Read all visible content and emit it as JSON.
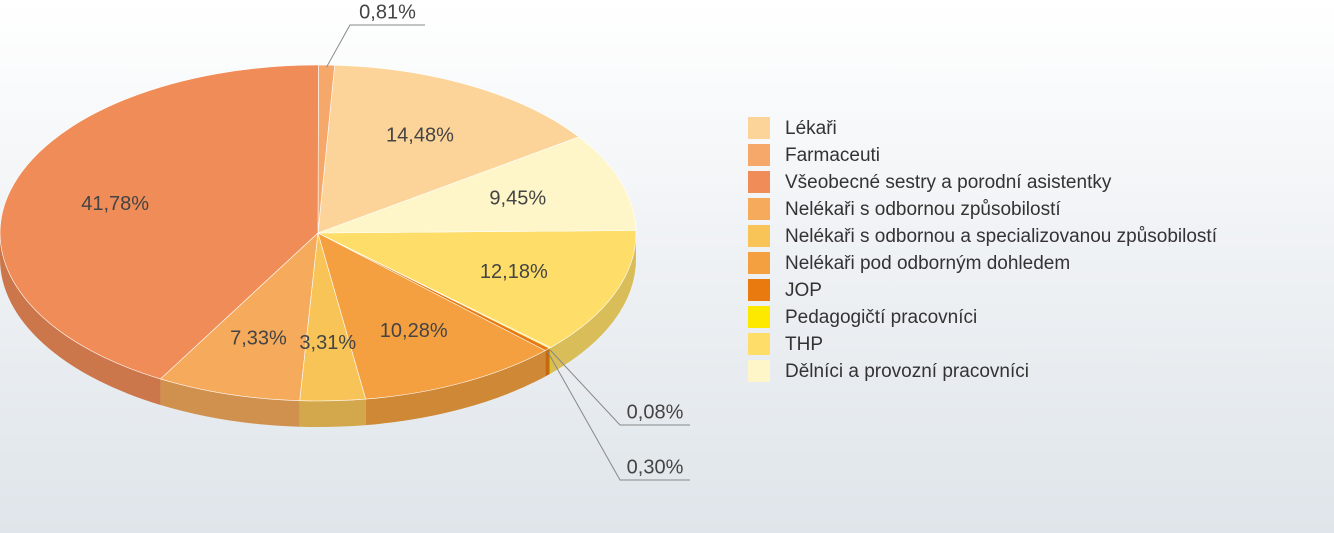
{
  "chart_data": {
    "type": "pie",
    "categories": [
      "Lékaři",
      "Farmaceuti",
      "Všeobecné sestry a porodní asistentky",
      "Nelékaři s odbornou způsobilostí",
      "Nelékaři s odbornou a specializovanou způsobilostí",
      "Nelékaři pod odborným dohledem",
      "JOP",
      "Pedagogičtí pracovníci",
      "THP",
      "Dělníci a provozní pracovníci"
    ],
    "values": [
      14.48,
      0.81,
      41.78,
      7.33,
      3.31,
      10.28,
      0.3,
      0.08,
      12.18,
      9.45
    ],
    "value_labels": [
      "14,48%",
      "0,81%",
      "41,78%",
      "7,33%",
      "3,31%",
      "10,28%",
      "0,30%",
      "0,08%",
      "12,18%",
      "9,45%"
    ],
    "colors": [
      "#fcd49a",
      "#f6a86a",
      "#f08c58",
      "#f6aa5c",
      "#f8c458",
      "#f4a040",
      "#e87a10",
      "#fde800",
      "#fede68",
      "#fef6c8"
    ],
    "legend": "right"
  }
}
